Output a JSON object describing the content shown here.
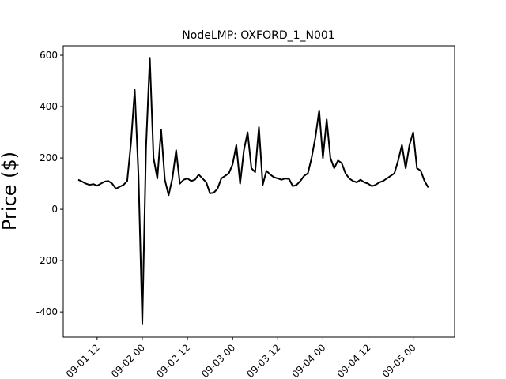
{
  "chart_data": {
    "type": "line",
    "title": "NodeLMP: OXFORD_1_N001",
    "y_label": "Price ($)",
    "x": [
      "09-01 07",
      "09-01 08",
      "09-01 09",
      "09-01 10",
      "09-01 11",
      "09-01 12",
      "09-01 13",
      "09-01 14",
      "09-01 15",
      "09-01 16",
      "09-01 17",
      "09-01 18",
      "09-01 19",
      "09-01 20",
      "09-01 21",
      "09-01 22",
      "09-01 23",
      "09-02 00",
      "09-02 01",
      "09-02 02",
      "09-02 03",
      "09-02 04",
      "09-02 05",
      "09-02 06",
      "09-02 07",
      "09-02 08",
      "09-02 09",
      "09-02 10",
      "09-02 11",
      "09-02 12",
      "09-02 13",
      "09-02 14",
      "09-02 15",
      "09-02 16",
      "09-02 17",
      "09-02 18",
      "09-02 19",
      "09-02 20",
      "09-02 21",
      "09-02 22",
      "09-02 23",
      "09-03 00",
      "09-03 01",
      "09-03 02",
      "09-03 03",
      "09-03 04",
      "09-03 05",
      "09-03 06",
      "09-03 07",
      "09-03 08",
      "09-03 09",
      "09-03 10",
      "09-03 11",
      "09-03 12",
      "09-03 13",
      "09-03 14",
      "09-03 15",
      "09-03 16",
      "09-03 17",
      "09-03 18",
      "09-03 19",
      "09-03 20",
      "09-03 21",
      "09-03 22",
      "09-03 23",
      "09-04 00",
      "09-04 01",
      "09-04 02",
      "09-04 03",
      "09-04 04",
      "09-04 05",
      "09-04 06",
      "09-04 07",
      "09-04 08",
      "09-04 09",
      "09-04 10",
      "09-04 11",
      "09-04 12",
      "09-04 13",
      "09-04 14",
      "09-04 15",
      "09-04 16",
      "09-04 17",
      "09-04 18",
      "09-04 19",
      "09-04 20",
      "09-04 21",
      "09-04 22",
      "09-04 23",
      "09-05 00",
      "09-05 01",
      "09-05 02",
      "09-05 03",
      "09-05 04"
    ],
    "series": [
      {
        "name": "OXFORD_1_N001",
        "color": "#000000",
        "values": [
          115,
          108,
          100,
          95,
          98,
          92,
          100,
          108,
          110,
          100,
          80,
          88,
          95,
          110,
          260,
          465,
          130,
          -445,
          240,
          590,
          200,
          120,
          310,
          115,
          55,
          120,
          230,
          100,
          115,
          120,
          110,
          115,
          135,
          120,
          105,
          62,
          65,
          80,
          120,
          130,
          140,
          175,
          250,
          100,
          230,
          300,
          160,
          145,
          320,
          95,
          150,
          135,
          125,
          120,
          115,
          120,
          118,
          90,
          95,
          110,
          130,
          140,
          200,
          280,
          385,
          200,
          350,
          200,
          160,
          190,
          180,
          140,
          120,
          110,
          105,
          115,
          105,
          100,
          90,
          95,
          105,
          110,
          120,
          130,
          140,
          190,
          250,
          160,
          250,
          300,
          160,
          150,
          110,
          85
        ]
      }
    ],
    "xlim": [
      "09-01 03",
      "09-05 11"
    ],
    "xticks": [
      "09-01 12",
      "09-02 00",
      "09-02 12",
      "09-03 00",
      "09-03 12",
      "09-04 00",
      "09-04 12",
      "09-05 00"
    ],
    "ylim": [
      -498,
      637
    ],
    "yticks": [
      -400,
      -200,
      0,
      200,
      400,
      600
    ]
  }
}
